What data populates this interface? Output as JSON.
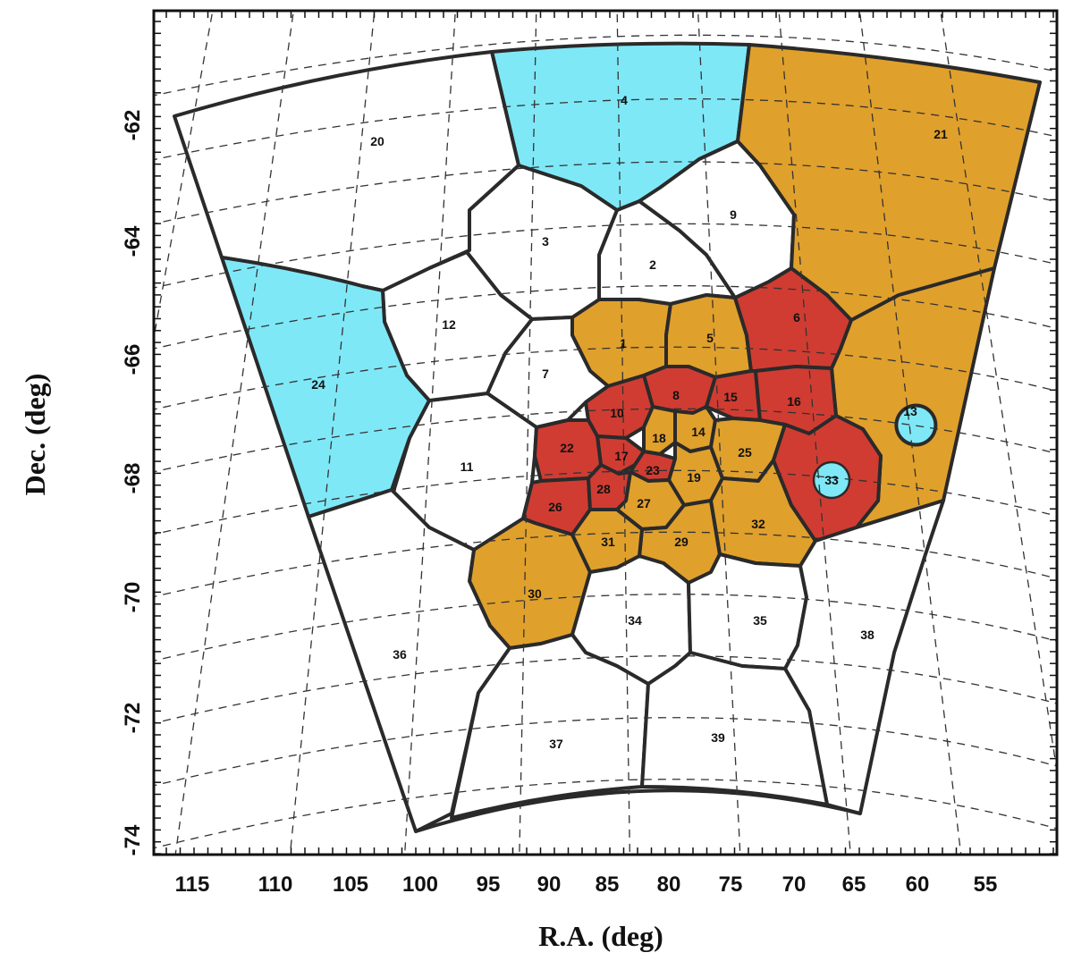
{
  "figure": {
    "xlabel": "R.A. (deg)",
    "ylabel": "Dec. (deg)",
    "x_ticks": [
      "115",
      "110",
      "105",
      "100",
      "95",
      "90",
      "85",
      "80",
      "75",
      "70",
      "65",
      "60",
      "55"
    ],
    "y_ticks": [
      "-62",
      "-64",
      "-66",
      "-68",
      "-70",
      "-72",
      "-74"
    ]
  },
  "colors": {
    "cyan": "#7fe8f7",
    "orange": "#e0a02c",
    "red": "#d03c32",
    "white": "#ffffff",
    "outline": "#2a2a2a"
  },
  "fields": [
    {
      "id": "1",
      "fill": "orange"
    },
    {
      "id": "2",
      "fill": "white"
    },
    {
      "id": "3",
      "fill": "white"
    },
    {
      "id": "4",
      "fill": "cyan"
    },
    {
      "id": "5",
      "fill": "orange"
    },
    {
      "id": "6",
      "fill": "red"
    },
    {
      "id": "7",
      "fill": "white"
    },
    {
      "id": "8",
      "fill": "red"
    },
    {
      "id": "9",
      "fill": "white"
    },
    {
      "id": "10",
      "fill": "red"
    },
    {
      "id": "11",
      "fill": "white"
    },
    {
      "id": "12",
      "fill": "white"
    },
    {
      "id": "13",
      "fill": "cyan"
    },
    {
      "id": "14",
      "fill": "orange"
    },
    {
      "id": "15",
      "fill": "red"
    },
    {
      "id": "16",
      "fill": "red"
    },
    {
      "id": "17",
      "fill": "red"
    },
    {
      "id": "18",
      "fill": "orange"
    },
    {
      "id": "19",
      "fill": "orange"
    },
    {
      "id": "20",
      "fill": "white"
    },
    {
      "id": "21",
      "fill": "orange"
    },
    {
      "id": "22",
      "fill": "red"
    },
    {
      "id": "23",
      "fill": "red"
    },
    {
      "id": "24",
      "fill": "cyan"
    },
    {
      "id": "25",
      "fill": "orange"
    },
    {
      "id": "26",
      "fill": "red"
    },
    {
      "id": "27",
      "fill": "orange"
    },
    {
      "id": "28",
      "fill": "red"
    },
    {
      "id": "29",
      "fill": "orange"
    },
    {
      "id": "30",
      "fill": "orange"
    },
    {
      "id": "31",
      "fill": "orange"
    },
    {
      "id": "32",
      "fill": "orange"
    },
    {
      "id": "33",
      "fill": "cyan"
    },
    {
      "id": "34",
      "fill": "white"
    },
    {
      "id": "35",
      "fill": "white"
    },
    {
      "id": "36",
      "fill": "white"
    },
    {
      "id": "37",
      "fill": "white"
    },
    {
      "id": "38",
      "fill": "white"
    },
    {
      "id": "39",
      "fill": "white"
    }
  ]
}
